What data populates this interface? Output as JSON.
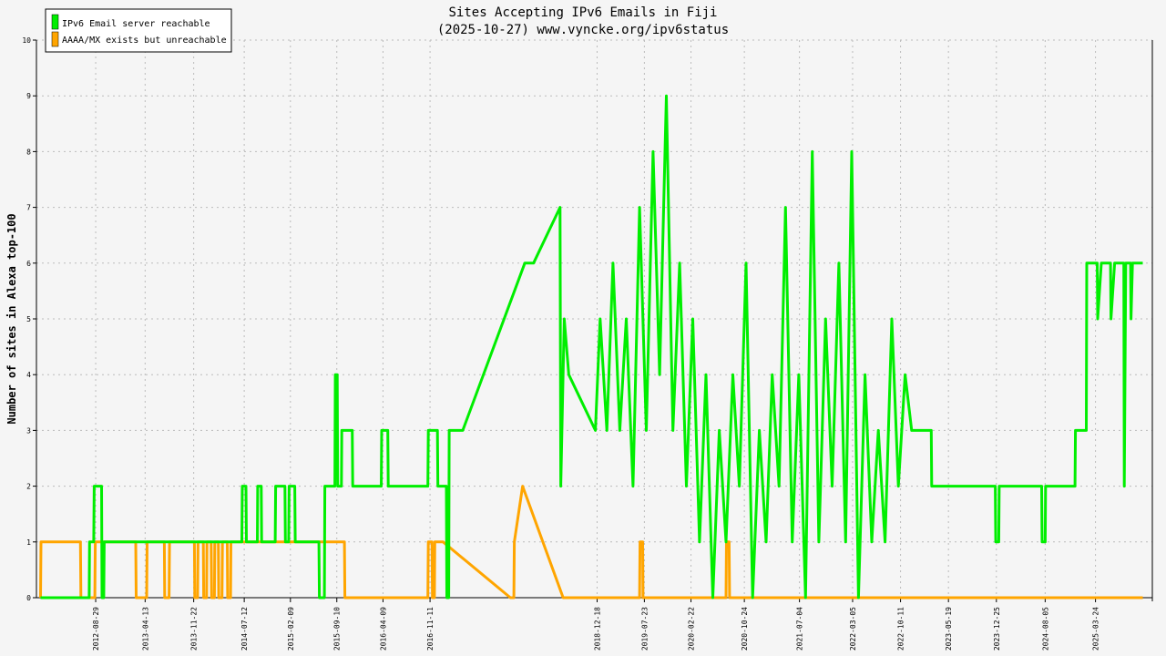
{
  "chart_data": {
    "type": "line",
    "title": "Sites Accepting IPv6 Emails in Fiji",
    "subtitle": "(2025-10-27) www.vyncke.org/ipv6status",
    "ylabel": "Number of sites in Alexa top-100",
    "xlabel": "",
    "ylim": [
      0,
      10
    ],
    "y_ticks": [
      "0",
      "1",
      "2",
      "3",
      "4",
      "5",
      "6",
      "7",
      "8",
      "9",
      "10"
    ],
    "x_tick_labels": [
      "2012-08-29",
      "2013-04-13",
      "2013-11-22",
      "2014-07-12",
      "2015-02-09",
      "2015-09-10",
      "2016-04-09",
      "2016-11-11",
      "2018-12-18",
      "2019-07-23",
      "2020-02-22",
      "2020-10-24",
      "2021-07-04",
      "2022-03-05",
      "2022-10-11",
      "2023-05-19",
      "2023-12-25",
      "2024-08-05",
      "2025-03-24"
    ],
    "grid": true,
    "legend_position": "top-left",
    "series": [
      {
        "name": "IPv6 Email server reachable",
        "color": "#00ee00",
        "points": [
          [
            "2011-12-20",
            0
          ],
          [
            "2012-07-30",
            0
          ],
          [
            "2012-08-01",
            1
          ],
          [
            "2012-08-20",
            1
          ],
          [
            "2012-08-22",
            2
          ],
          [
            "2012-09-25",
            2
          ],
          [
            "2012-09-27",
            0
          ],
          [
            "2012-10-05",
            0
          ],
          [
            "2012-10-07",
            1
          ],
          [
            "2014-07-01",
            1
          ],
          [
            "2014-07-03",
            2
          ],
          [
            "2014-07-20",
            2
          ],
          [
            "2014-07-22",
            1
          ],
          [
            "2014-09-10",
            1
          ],
          [
            "2014-09-12",
            2
          ],
          [
            "2014-09-28",
            2
          ],
          [
            "2014-09-30",
            1
          ],
          [
            "2014-12-01",
            1
          ],
          [
            "2014-12-03",
            2
          ],
          [
            "2015-01-15",
            2
          ],
          [
            "2015-01-17",
            1
          ],
          [
            "2015-02-01",
            1
          ],
          [
            "2015-02-03",
            2
          ],
          [
            "2015-03-01",
            2
          ],
          [
            "2015-03-03",
            1
          ],
          [
            "2015-06-20",
            1
          ],
          [
            "2015-06-22",
            0
          ],
          [
            "2015-07-15",
            0
          ],
          [
            "2015-07-17",
            2
          ],
          [
            "2015-09-01",
            2
          ],
          [
            "2015-09-03",
            4
          ],
          [
            "2015-09-12",
            4
          ],
          [
            "2015-09-14",
            2
          ],
          [
            "2015-10-01",
            2
          ],
          [
            "2015-10-03",
            3
          ],
          [
            "2015-11-20",
            3
          ],
          [
            "2015-11-22",
            2
          ],
          [
            "2016-04-01",
            2
          ],
          [
            "2016-04-03",
            3
          ],
          [
            "2016-05-01",
            3
          ],
          [
            "2016-05-03",
            2
          ],
          [
            "2016-11-01",
            2
          ],
          [
            "2016-11-03",
            3
          ],
          [
            "2016-12-15",
            3
          ],
          [
            "2016-12-17",
            2
          ],
          [
            "2017-01-25",
            2
          ],
          [
            "2017-01-27",
            0
          ],
          [
            "2017-02-05",
            0
          ],
          [
            "2017-02-07",
            3
          ],
          [
            "2017-04-10",
            3
          ],
          [
            "2018-01-20",
            6
          ],
          [
            "2018-03-01",
            6
          ],
          [
            "2018-07-01",
            7
          ],
          [
            "2018-07-04",
            2
          ],
          [
            "2018-07-20",
            5
          ],
          [
            "2018-08-10",
            4
          ],
          [
            "2018-12-10",
            3
          ],
          [
            "2019-01-01",
            5
          ],
          [
            "2019-02-01",
            3
          ],
          [
            "2019-03-01",
            6
          ],
          [
            "2019-04-01",
            3
          ],
          [
            "2019-05-01",
            5
          ],
          [
            "2019-06-01",
            2
          ],
          [
            "2019-07-01",
            7
          ],
          [
            "2019-08-01",
            3
          ],
          [
            "2019-09-01",
            8
          ],
          [
            "2019-10-01",
            4
          ],
          [
            "2019-11-01",
            9
          ],
          [
            "2019-12-01",
            3
          ],
          [
            "2020-01-01",
            6
          ],
          [
            "2020-02-01",
            2
          ],
          [
            "2020-03-01",
            5
          ],
          [
            "2020-04-01",
            1
          ],
          [
            "2020-05-01",
            4
          ],
          [
            "2020-06-01",
            0
          ],
          [
            "2020-07-01",
            3
          ],
          [
            "2020-08-01",
            1
          ],
          [
            "2020-09-01",
            4
          ],
          [
            "2020-10-01",
            2
          ],
          [
            "2020-11-01",
            6
          ],
          [
            "2020-12-01",
            0
          ],
          [
            "2021-01-01",
            3
          ],
          [
            "2021-02-01",
            1
          ],
          [
            "2021-03-01",
            4
          ],
          [
            "2021-04-01",
            2
          ],
          [
            "2021-05-01",
            7
          ],
          [
            "2021-06-01",
            1
          ],
          [
            "2021-07-01",
            4
          ],
          [
            "2021-08-01",
            0
          ],
          [
            "2021-09-01",
            8
          ],
          [
            "2021-10-01",
            1
          ],
          [
            "2021-11-01",
            5
          ],
          [
            "2021-12-01",
            2
          ],
          [
            "2022-01-01",
            6
          ],
          [
            "2022-02-01",
            1
          ],
          [
            "2022-03-01",
            8
          ],
          [
            "2022-04-01",
            0
          ],
          [
            "2022-05-01",
            4
          ],
          [
            "2022-06-01",
            1
          ],
          [
            "2022-07-01",
            3
          ],
          [
            "2022-08-01",
            1
          ],
          [
            "2022-09-01",
            5
          ],
          [
            "2022-10-01",
            2
          ],
          [
            "2022-11-01",
            4
          ],
          [
            "2022-12-01",
            3
          ],
          [
            "2023-03-01",
            3
          ],
          [
            "2023-03-03",
            2
          ],
          [
            "2023-12-20",
            2
          ],
          [
            "2023-12-22",
            1
          ],
          [
            "2024-01-05",
            1
          ],
          [
            "2024-01-07",
            2
          ],
          [
            "2024-07-20",
            2
          ],
          [
            "2024-07-22",
            1
          ],
          [
            "2024-08-05",
            1
          ],
          [
            "2024-08-07",
            2
          ],
          [
            "2024-12-20",
            2
          ],
          [
            "2024-12-22",
            3
          ],
          [
            "2025-02-10",
            3
          ],
          [
            "2025-02-12",
            6
          ],
          [
            "2025-04-01",
            6
          ],
          [
            "2025-04-03",
            5
          ],
          [
            "2025-04-20",
            6
          ],
          [
            "2025-06-01",
            6
          ],
          [
            "2025-06-03",
            5
          ],
          [
            "2025-06-20",
            6
          ],
          [
            "2025-08-01",
            6
          ],
          [
            "2025-08-03",
            2
          ],
          [
            "2025-08-10",
            6
          ],
          [
            "2025-09-01",
            6
          ],
          [
            "2025-09-03",
            5
          ],
          [
            "2025-09-10",
            6
          ],
          [
            "2025-10-27",
            6
          ]
        ]
      },
      {
        "name": "AAAA/MX exists but unreachable",
        "color": "#ffa500",
        "points": [
          [
            "2011-12-20",
            0
          ],
          [
            "2011-12-22",
            1
          ],
          [
            "2012-06-20",
            1
          ],
          [
            "2012-06-22",
            0
          ],
          [
            "2012-08-25",
            0
          ],
          [
            "2012-08-27",
            1
          ],
          [
            "2013-03-01",
            1
          ],
          [
            "2013-03-03",
            0
          ],
          [
            "2013-04-20",
            0
          ],
          [
            "2013-04-22",
            1
          ],
          [
            "2013-07-10",
            1
          ],
          [
            "2013-07-12",
            0
          ],
          [
            "2013-08-01",
            0
          ],
          [
            "2013-08-03",
            1
          ],
          [
            "2013-11-25",
            1
          ],
          [
            "2013-11-27",
            0
          ],
          [
            "2013-12-10",
            0
          ],
          [
            "2013-12-12",
            1
          ],
          [
            "2014-01-05",
            1
          ],
          [
            "2014-01-07",
            0
          ],
          [
            "2014-01-20",
            0
          ],
          [
            "2014-01-22",
            1
          ],
          [
            "2014-02-10",
            1
          ],
          [
            "2014-02-12",
            0
          ],
          [
            "2014-02-25",
            0
          ],
          [
            "2014-02-27",
            1
          ],
          [
            "2014-03-15",
            1
          ],
          [
            "2014-03-17",
            0
          ],
          [
            "2014-04-01",
            0
          ],
          [
            "2014-04-03",
            1
          ],
          [
            "2014-04-25",
            1
          ],
          [
            "2014-04-27",
            0
          ],
          [
            "2014-05-10",
            0
          ],
          [
            "2014-05-12",
            1
          ],
          [
            "2015-10-15",
            1
          ],
          [
            "2015-10-17",
            0
          ],
          [
            "2016-11-01",
            0
          ],
          [
            "2016-11-03",
            1
          ],
          [
            "2016-11-20",
            1
          ],
          [
            "2016-11-22",
            0
          ],
          [
            "2016-12-01",
            0
          ],
          [
            "2016-12-03",
            1
          ],
          [
            "2017-01-10",
            1
          ],
          [
            "2017-11-15",
            0
          ],
          [
            "2017-12-01",
            0
          ],
          [
            "2017-12-03",
            1
          ],
          [
            "2018-01-10",
            2
          ],
          [
            "2018-07-15",
            0
          ],
          [
            "2019-07-01",
            0
          ],
          [
            "2019-07-03",
            1
          ],
          [
            "2019-07-15",
            1
          ],
          [
            "2019-07-17",
            0
          ],
          [
            "2020-08-01",
            0
          ],
          [
            "2020-08-03",
            1
          ],
          [
            "2020-08-15",
            1
          ],
          [
            "2020-08-17",
            0
          ],
          [
            "2025-10-27",
            0
          ]
        ]
      }
    ]
  }
}
